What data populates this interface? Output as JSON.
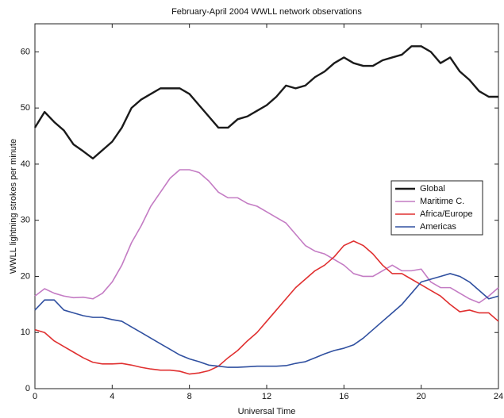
{
  "chart_data": {
    "type": "line",
    "title": "February-April 2004 WWLL network observations",
    "xlabel": "Universal Time",
    "ylabel": "WWLL lightning strokes per minute",
    "x": [
      0,
      0.5,
      1,
      1.5,
      2,
      2.5,
      3,
      3.5,
      4,
      4.5,
      5,
      5.5,
      6,
      6.5,
      7,
      7.5,
      8,
      8.5,
      9,
      9.5,
      10,
      10.5,
      11,
      11.5,
      12,
      12.5,
      13,
      13.5,
      14,
      14.5,
      15,
      15.5,
      16,
      16.5,
      17,
      17.5,
      18,
      18.5,
      19,
      19.5,
      20,
      20.5,
      21,
      21.5,
      22,
      22.5,
      23,
      23.5,
      24
    ],
    "series": [
      {
        "name": "Global",
        "color": "#1a1a1a",
        "values": [
          46.5,
          49.3,
          47.5,
          46,
          43.5,
          42.3,
          41,
          42.5,
          44,
          46.5,
          50,
          51.5,
          52.5,
          53.5,
          53.5,
          53.5,
          52.5,
          50.5,
          48.5,
          46.5,
          46.5,
          48,
          48.5,
          49.5,
          50.5,
          52,
          54,
          53.5,
          54,
          55.5,
          56.5,
          58,
          59,
          58,
          57.5,
          57.5,
          58.5,
          59,
          59.5,
          61,
          61,
          60,
          58,
          59,
          56.5,
          55,
          53,
          52,
          52
        ]
      },
      {
        "name": "Maritime C.",
        "color": "#c47cc4",
        "values": [
          16.5,
          17.8,
          17,
          16.5,
          16.2,
          16.3,
          16,
          17,
          19,
          22,
          26,
          29,
          32.5,
          35,
          37.5,
          39,
          39,
          38.5,
          37,
          35,
          34,
          34,
          33,
          32.5,
          31.5,
          30.5,
          29.5,
          27.5,
          25.5,
          24.5,
          24,
          23,
          22,
          20.5,
          20,
          20,
          21,
          22,
          21,
          21,
          21.3,
          19,
          18,
          18,
          17,
          16,
          15.3,
          16.5,
          18
        ]
      },
      {
        "name": "Africa/Europe",
        "color": "#e03030",
        "values": [
          10.5,
          10,
          8.5,
          7.5,
          6.5,
          5.5,
          4.7,
          4.4,
          4.4,
          4.5,
          4.2,
          3.8,
          3.5,
          3.3,
          3.3,
          3.1,
          2.6,
          2.8,
          3.2,
          4,
          5.5,
          6.8,
          8.5,
          10,
          12,
          14,
          16,
          18,
          19.5,
          21,
          22,
          23.5,
          25.5,
          26.3,
          25.5,
          24,
          22,
          20.5,
          20.5,
          19.5,
          18.5,
          17.5,
          16.5,
          15,
          13.7,
          14,
          13.5,
          13.5,
          12
        ]
      },
      {
        "name": "Americas",
        "color": "#3050a0",
        "values": [
          14,
          15.8,
          15.8,
          14,
          13.5,
          13,
          12.7,
          12.7,
          12.3,
          12,
          11,
          10,
          9,
          8,
          7,
          6,
          5.3,
          4.8,
          4.2,
          4,
          3.8,
          3.8,
          3.9,
          4,
          4,
          4,
          4.1,
          4.5,
          4.8,
          5.5,
          6.2,
          6.8,
          7.2,
          7.8,
          9,
          10.5,
          12,
          13.5,
          15,
          17,
          19,
          19.5,
          20,
          20.5,
          20,
          19,
          17.5,
          16,
          16.5
        ]
      }
    ],
    "xlim": [
      0,
      24
    ],
    "ylim": [
      0,
      65
    ],
    "xticks": [
      0,
      4,
      8,
      12,
      16,
      20,
      24
    ],
    "yticks": [
      0,
      10,
      20,
      30,
      40,
      50,
      60
    ],
    "legend": "right"
  }
}
